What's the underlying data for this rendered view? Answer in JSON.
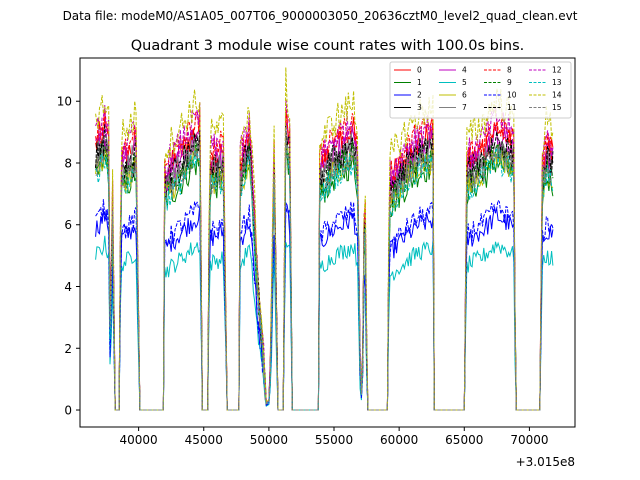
{
  "suptitle": "Data file: modeM0/AS1A05_007T06_9000003050_20636cztM0_level2_quad_clean.evt",
  "chart_data": {
    "type": "line",
    "title": "Quadrant 3 module wise count rates with 100.0s bins.",
    "xlabel": "",
    "ylabel": "",
    "x_offset_label": "+3.015e8",
    "xlim": [
      35500,
      73500
    ],
    "ylim": [
      -0.55,
      11.4
    ],
    "x_ticks": [
      40000,
      45000,
      50000,
      55000,
      60000,
      65000,
      70000
    ],
    "x_tick_labels": [
      "40000",
      "45000",
      "50000",
      "55000",
      "60000",
      "65000",
      "70000"
    ],
    "y_ticks": [
      0,
      2,
      4,
      6,
      8,
      10
    ],
    "y_tick_labels": [
      "0",
      "2",
      "4",
      "6",
      "8",
      "10"
    ],
    "x_start": 36700,
    "x_end": 71800,
    "bin_width": 100,
    "legend_position": "upper right",
    "envelope": [
      [
        36700,
        7.8
      ],
      [
        37400,
        8.4
      ],
      [
        37700,
        7.9
      ],
      [
        37850,
        0.0
      ],
      [
        37950,
        7.8
      ],
      [
        38200,
        0.0
      ],
      [
        38500,
        0.0
      ],
      [
        38650,
        7.4
      ],
      [
        39200,
        7.6
      ],
      [
        39800,
        8.0
      ],
      [
        40100,
        0.0
      ],
      [
        41900,
        0.0
      ],
      [
        42000,
        7.0
      ],
      [
        43000,
        7.5
      ],
      [
        44000,
        8.1
      ],
      [
        44700,
        8.4
      ],
      [
        44900,
        0.0
      ],
      [
        45300,
        0.0
      ],
      [
        45450,
        7.4
      ],
      [
        46500,
        7.7
      ],
      [
        46800,
        0.0
      ],
      [
        47700,
        0.0
      ],
      [
        47800,
        7.3
      ],
      [
        48500,
        8.2
      ],
      [
        48700,
        7.0
      ],
      [
        49200,
        3.5
      ],
      [
        49550,
        1.8
      ],
      [
        49800,
        0.2
      ],
      [
        50050,
        0.3
      ],
      [
        50200,
        3.0
      ],
      [
        50400,
        7.5
      ],
      [
        50700,
        0.0
      ],
      [
        51100,
        0.0
      ],
      [
        51300,
        8.8
      ],
      [
        51600,
        8.0
      ],
      [
        51800,
        0.0
      ],
      [
        53800,
        0.0
      ],
      [
        53900,
        7.2
      ],
      [
        55000,
        7.8
      ],
      [
        56500,
        8.3
      ],
      [
        56800,
        7.5
      ],
      [
        57050,
        0.0
      ],
      [
        57200,
        1.5
      ],
      [
        57350,
        7.6
      ],
      [
        57550,
        0.0
      ],
      [
        59100,
        0.0
      ],
      [
        59250,
        6.8
      ],
      [
        60500,
        7.5
      ],
      [
        61500,
        8.0
      ],
      [
        62600,
        8.2
      ],
      [
        62700,
        0.0
      ],
      [
        65000,
        0.0
      ],
      [
        65200,
        7.3
      ],
      [
        66500,
        7.8
      ],
      [
        67500,
        8.4
      ],
      [
        68500,
        8.0
      ],
      [
        68800,
        7.8
      ],
      [
        68950,
        0.0
      ],
      [
        70800,
        0.0
      ],
      [
        71000,
        7.2
      ],
      [
        71300,
        7.8
      ],
      [
        71800,
        7.6
      ]
    ],
    "series": [
      {
        "name": "0",
        "color": "#ff0000",
        "dash": "solid",
        "scale": 1.09
      },
      {
        "name": "1",
        "color": "#008000",
        "dash": "solid",
        "scale": 0.96
      },
      {
        "name": "2",
        "color": "#0000ff",
        "dash": "solid",
        "scale": 0.75
      },
      {
        "name": "3",
        "color": "#000000",
        "dash": "solid",
        "scale": 1.02
      },
      {
        "name": "4",
        "color": "#bf00bf",
        "dash": "solid",
        "scale": 1.06
      },
      {
        "name": "5",
        "color": "#00bfbf",
        "dash": "solid",
        "scale": 0.64
      },
      {
        "name": "6",
        "color": "#bfbf00",
        "dash": "solid",
        "scale": 0.99
      },
      {
        "name": "7",
        "color": "#808080",
        "dash": "solid",
        "scale": 1.04
      },
      {
        "name": "8",
        "color": "#ff0000",
        "dash": "dashed",
        "scale": 1.12
      },
      {
        "name": "9",
        "color": "#008000",
        "dash": "dashed",
        "scale": 1.0
      },
      {
        "name": "10",
        "color": "#0000ff",
        "dash": "dashed",
        "scale": 0.78
      },
      {
        "name": "11",
        "color": "#000000",
        "dash": "dashed",
        "scale": 1.05
      },
      {
        "name": "12",
        "color": "#bf00bf",
        "dash": "dashed",
        "scale": 1.13
      },
      {
        "name": "13",
        "color": "#00bfbf",
        "dash": "dashed",
        "scale": 0.97
      },
      {
        "name": "14",
        "color": "#bfbf00",
        "dash": "dashed",
        "scale": 1.2
      },
      {
        "name": "15",
        "color": "#808080",
        "dash": "dashed",
        "scale": 1.0
      }
    ]
  }
}
